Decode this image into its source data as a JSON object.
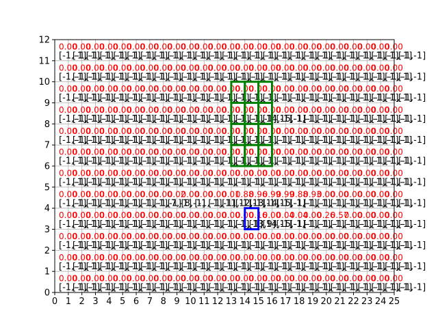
{
  "chart_data": {
    "type": "heatmap",
    "x_ticks": [
      "0",
      "1",
      "2",
      "3",
      "4",
      "5",
      "6",
      "7",
      "8",
      "9",
      "10",
      "11",
      "12",
      "13",
      "14",
      "15",
      "16",
      "17",
      "18",
      "19",
      "20",
      "21",
      "22",
      "23",
      "24",
      "25"
    ],
    "y_ticks": [
      "0",
      "1",
      "2",
      "3",
      "4",
      "5",
      "6",
      "7",
      "8",
      "9",
      "10",
      "11",
      "12"
    ],
    "xlim": [
      0,
      25
    ],
    "ylim": [
      0,
      12
    ],
    "grid": true,
    "cell_value_default": "0.00",
    "cell_label_default": "[-1,-1]",
    "rows": [
      {
        "y": 11,
        "values": [],
        "labels": []
      },
      {
        "y": 10,
        "values": [],
        "labels": []
      },
      {
        "y": 9,
        "values": [],
        "labels": []
      },
      {
        "y": 8,
        "values": [
          [
            15,
            "0.00"
          ]
        ],
        "labels": [
          [
            15,
            "[14,-1]"
          ],
          [
            16,
            "[15,-1]"
          ]
        ]
      },
      {
        "y": 7,
        "values": [],
        "labels": []
      },
      {
        "y": 6,
        "values": [],
        "labels": []
      },
      {
        "y": 5,
        "values": [],
        "labels": []
      },
      {
        "y": 4,
        "values": [
          [
            8,
            "0.02"
          ],
          [
            9,
            "0.00"
          ],
          [
            10,
            "0.00"
          ],
          [
            11,
            "0.00"
          ],
          [
            12,
            "0.01"
          ],
          [
            13,
            "0.88"
          ],
          [
            14,
            "0.96"
          ],
          [
            15,
            "0.99"
          ],
          [
            16,
            "0.99"
          ],
          [
            17,
            "0.88"
          ],
          [
            18,
            "0.93"
          ]
        ],
        "labels": [
          [
            8,
            "[7,-1]"
          ],
          [
            9,
            "[8,-1]"
          ],
          [
            12,
            "[11,-1]"
          ],
          [
            13,
            "[12,-1]"
          ],
          [
            14,
            "[13,-1]"
          ],
          [
            15,
            "[14,-1]"
          ],
          [
            16,
            "[15,-1]"
          ]
        ]
      },
      {
        "y": 3,
        "values": [
          [
            14,
            "0.16"
          ],
          [
            15,
            "0.00"
          ],
          [
            16,
            "0.04"
          ],
          [
            17,
            "0.04"
          ],
          [
            18,
            "0.00"
          ],
          [
            19,
            "0.26"
          ],
          [
            20,
            "0.57"
          ]
        ],
        "labels": [
          [
            14,
            "[13,9]"
          ],
          [
            15,
            "[14,-1]"
          ],
          [
            16,
            "[15,-1]"
          ]
        ]
      },
      {
        "y": 2,
        "values": [],
        "labels": []
      },
      {
        "y": 1,
        "values": [],
        "labels": []
      },
      {
        "y": 0,
        "values": [],
        "labels": []
      }
    ],
    "highlight_green": [
      [
        13,
        9
      ],
      [
        14,
        9
      ],
      [
        15,
        9
      ],
      [
        13,
        8
      ],
      [
        14,
        8
      ],
      [
        15,
        8
      ],
      [
        13,
        7
      ],
      [
        14,
        7
      ],
      [
        15,
        7
      ],
      [
        13,
        6
      ],
      [
        14,
        6
      ],
      [
        15,
        6
      ]
    ],
    "highlight_blue": [
      [
        14,
        3
      ]
    ],
    "colors": {
      "value_text": "#ff0000",
      "label_text": "#000000",
      "grid": "#b0b0b0",
      "green": "#008000",
      "blue": "#0000ff"
    }
  }
}
